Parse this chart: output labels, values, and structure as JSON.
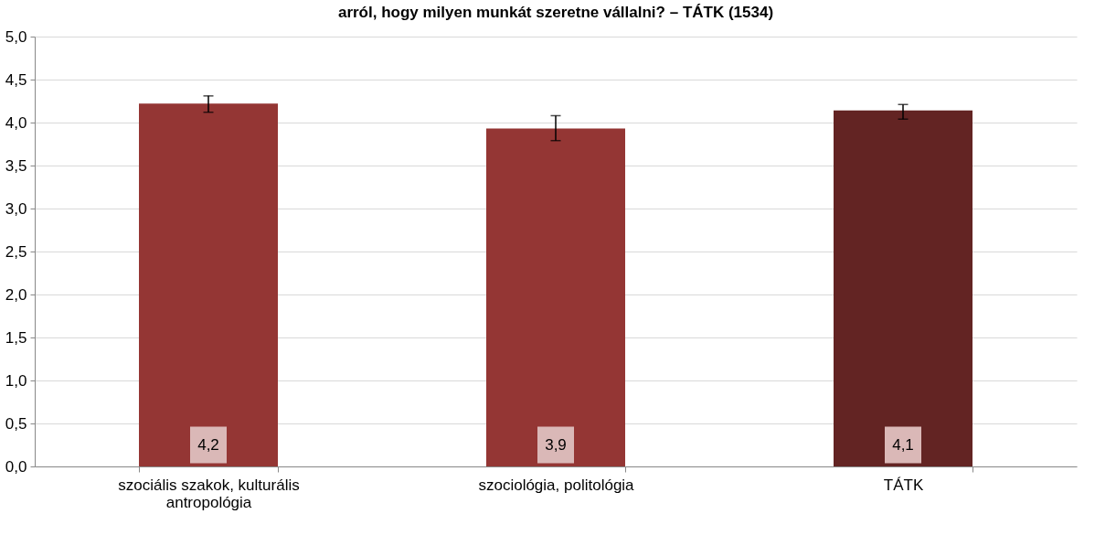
{
  "chart_data": {
    "type": "bar",
    "title": "arról, hogy milyen munkát szeretne vállalni? – TÁTK (1534)",
    "categories": [
      "szociális szakok, kulturális antropológia",
      "szociológia, politológia",
      "TÁTK"
    ],
    "values": [
      4.22,
      3.93,
      4.14
    ],
    "colors": [
      "#943634",
      "#943634",
      "#632423"
    ],
    "errors": [
      [
        4.12,
        4.31
      ],
      [
        3.79,
        4.08
      ],
      [
        4.04,
        4.21
      ]
    ],
    "value_labels": [
      "4,2",
      "3,9",
      "4,1"
    ],
    "ylim": [
      0,
      5
    ],
    "yticks": [
      {
        "value": 0,
        "label": "0,0"
      },
      {
        "value": 0.5,
        "label": "0,5"
      },
      {
        "value": 1,
        "label": "1,0"
      },
      {
        "value": 1.5,
        "label": "1,5"
      },
      {
        "value": 2,
        "label": "2,0"
      },
      {
        "value": 2.5,
        "label": "2,5"
      },
      {
        "value": 3,
        "label": "3,0"
      },
      {
        "value": 3.5,
        "label": "3,5"
      },
      {
        "value": 4,
        "label": "4,0"
      },
      {
        "value": 4.5,
        "label": "4,5"
      },
      {
        "value": 5,
        "label": "5,0"
      }
    ],
    "grid": "y"
  }
}
